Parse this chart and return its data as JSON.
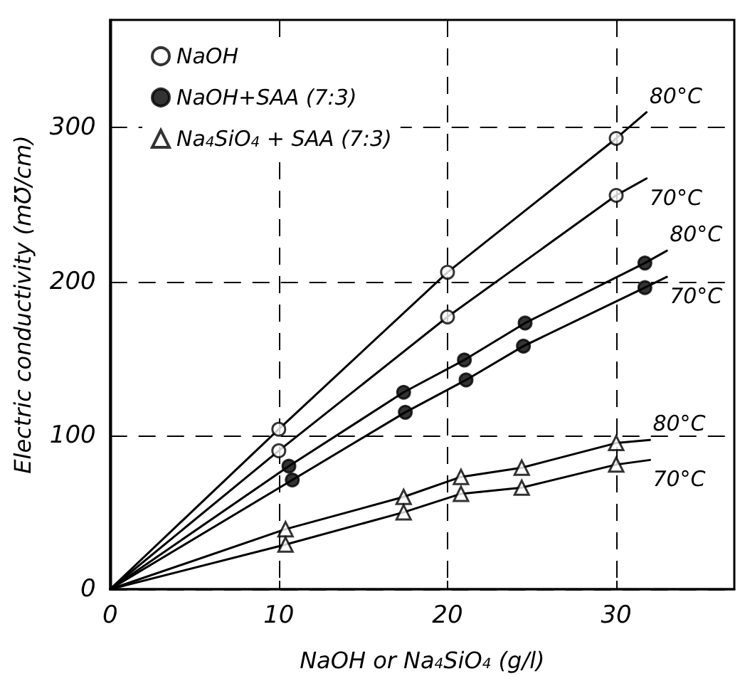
{
  "chart_data": {
    "type": "scatter",
    "xlabel": "NaOH or Na$_{4}$SiO$_{4}$ (g/l)",
    "ylabel": "Electric conductivity (m℧/cm)",
    "xlim": [
      0,
      37
    ],
    "ylim": [
      0,
      370
    ],
    "xticks": [
      0,
      10,
      20,
      30
    ],
    "yticks": [
      0,
      100,
      200,
      300
    ],
    "grid": true,
    "legend": "top left",
    "series": [
      {
        "name": "NaOH",
        "type": "scatter",
        "marker": "circle",
        "color": "#ffffff",
        "x": [
          10,
          20,
          30
        ],
        "values": [
          104,
          206,
          293
        ]
      },
      {
        "type": "scatter",
        "marker": "circle",
        "color": "#ffffff",
        "x": [
          10,
          20,
          30
        ],
        "values": [
          90,
          177,
          256
        ]
      },
      {
        "name": "NaOH+SAA (7:3)",
        "type": "scatter",
        "marker": "circle",
        "color": "#000000",
        "x": [
          10.6,
          17.4,
          21.0,
          24.6,
          31.7
        ],
        "values": [
          80,
          128,
          149,
          173,
          212
        ]
      },
      {
        "type": "scatter",
        "marker": "circle",
        "color": "#000000",
        "x": [
          10.8,
          17.5,
          21.1,
          24.5,
          31.7
        ],
        "values": [
          71,
          115,
          136,
          158,
          196
        ]
      },
      {
        "name": "Na$_{4}$SiO$_{4}$ + SAA (7:3)",
        "type": "scatter",
        "marker": "triangle",
        "color": "#ffffff",
        "x": [
          10.4,
          17.4,
          20.8,
          24.4,
          30
        ],
        "values": [
          39,
          60,
          73,
          79,
          95
        ]
      },
      {
        "type": "scatter",
        "marker": "triangle",
        "color": "#ffffff",
        "x": [
          10.4,
          17.4,
          20.8,
          24.4,
          30
        ],
        "values": [
          29,
          50,
          62,
          66,
          81
        ]
      },
      {
        "type": "line",
        "marker": "none",
        "color": "#000000",
        "x": [
          0,
          10,
          20,
          30,
          31.8
        ],
        "values": [
          0,
          104,
          206,
          293,
          310
        ]
      },
      {
        "type": "line",
        "marker": "none",
        "color": "#000000",
        "x": [
          0,
          10,
          20,
          30,
          31.8
        ],
        "values": [
          0,
          90,
          177,
          256,
          267
        ]
      },
      {
        "type": "line",
        "marker": "none",
        "color": "#000000",
        "x": [
          0,
          10.6,
          17.4,
          21.0,
          24.6,
          31.7,
          33.0
        ],
        "values": [
          0,
          80,
          128,
          149,
          173,
          212,
          220
        ]
      },
      {
        "type": "line",
        "marker": "none",
        "color": "#000000",
        "x": [
          0,
          10.8,
          17.5,
          21.1,
          24.5,
          31.7,
          33.0
        ],
        "values": [
          0,
          71,
          115,
          136,
          158,
          196,
          203
        ]
      },
      {
        "type": "line",
        "marker": "none",
        "color": "#000000",
        "x": [
          0,
          10.4,
          17.4,
          20.8,
          24.4,
          30,
          32.0
        ],
        "values": [
          0,
          39,
          60,
          73,
          79,
          95,
          97
        ]
      },
      {
        "type": "line",
        "marker": "none",
        "color": "#000000",
        "x": [
          0,
          10.4,
          17.4,
          20.8,
          24.4,
          30,
          32.0
        ],
        "values": [
          0,
          29,
          50,
          62,
          66,
          81,
          84
        ]
      }
    ],
    "annotations": [
      {
        "text": "80°C",
        "x": 31.8,
        "y": 310
      },
      {
        "text": "70°C",
        "x": 31.8,
        "y": 267
      },
      {
        "text": "80°C",
        "x": 33.0,
        "y": 220
      },
      {
        "text": "70°C",
        "x": 33.0,
        "y": 203
      },
      {
        "text": "80°C",
        "x": 32.0,
        "y": 97
      },
      {
        "text": "70°C",
        "x": 32.0,
        "y": 84
      }
    ]
  }
}
